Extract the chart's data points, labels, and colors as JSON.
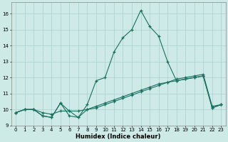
{
  "xlabel": "Humidex (Indice chaleur)",
  "xlim": [
    -0.5,
    23.5
  ],
  "ylim": [
    9.0,
    16.7
  ],
  "yticks": [
    9,
    10,
    11,
    12,
    13,
    14,
    15,
    16
  ],
  "xticks": [
    0,
    1,
    2,
    3,
    4,
    5,
    6,
    7,
    8,
    9,
    10,
    11,
    12,
    13,
    14,
    15,
    16,
    17,
    18,
    19,
    20,
    21,
    22,
    23
  ],
  "bg_color": "#ceeae6",
  "grid_color": "#aacfcb",
  "line_color": "#1a7060",
  "line1_x": [
    0,
    1,
    2,
    3,
    4,
    5,
    6,
    7,
    8,
    9,
    10,
    11,
    12,
    13,
    14,
    15,
    16,
    17,
    18,
    19,
    20,
    21,
    22,
    23
  ],
  "line1_y": [
    9.8,
    10.0,
    10.0,
    9.6,
    9.5,
    10.4,
    9.9,
    9.5,
    10.3,
    11.8,
    12.0,
    13.6,
    14.5,
    15.0,
    16.2,
    15.2,
    14.6,
    13.0,
    11.8,
    11.9,
    12.0,
    12.1,
    10.1,
    10.3
  ],
  "line2_x": [
    0,
    1,
    2,
    3,
    4,
    5,
    6,
    7,
    8,
    9,
    10,
    11,
    12,
    13,
    14,
    15,
    16,
    17,
    18,
    19,
    20,
    21,
    22,
    23
  ],
  "line2_y": [
    9.8,
    10.0,
    10.0,
    9.8,
    9.7,
    9.9,
    9.9,
    9.9,
    10.0,
    10.1,
    10.3,
    10.5,
    10.7,
    10.9,
    11.1,
    11.3,
    11.5,
    11.7,
    11.9,
    12.0,
    12.1,
    12.2,
    10.2,
    10.3
  ],
  "line3_x": [
    0,
    1,
    2,
    3,
    4,
    5,
    6,
    7,
    8,
    9,
    10,
    11,
    12,
    13,
    14,
    15,
    16,
    17,
    18,
    19,
    20,
    21,
    22,
    23
  ],
  "line3_y": [
    9.8,
    10.0,
    10.0,
    9.6,
    9.5,
    10.4,
    9.6,
    9.5,
    10.0,
    10.2,
    10.4,
    10.6,
    10.8,
    11.0,
    11.2,
    11.4,
    11.6,
    11.7,
    11.8,
    11.9,
    12.0,
    12.1,
    10.1,
    10.3
  ]
}
